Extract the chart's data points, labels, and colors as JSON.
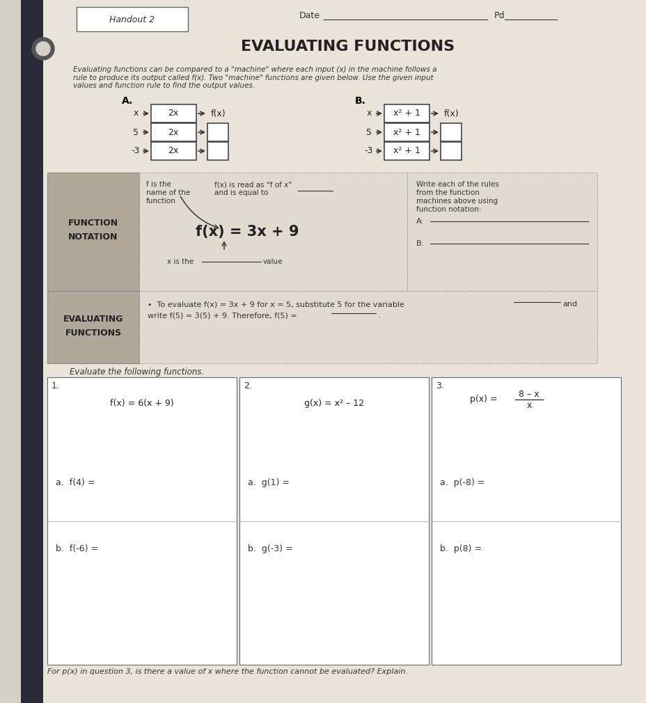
{
  "bg_color": "#d4d0c8",
  "paper_color": "#e8e4dc",
  "title": "EVALUATING FUNCTIONS",
  "header_text": "Handout 2",
  "date_label": "Date",
  "pd_label": "Pd",
  "intro_text": "Evaluating functions can be compared to a \"machine\" where each input (x) in the machine follows a\nrule to produce its output called f(x). Two \"machine\" functions are given below. Use the given input\nvalues and function rule to find the output values.",
  "machine_A_label": "A.",
  "machine_B_label": "B.",
  "machine_A_rule": "2x",
  "machine_B_rule": "x² + 1",
  "machine_inputs": [
    "x",
    "5",
    "-3"
  ],
  "machine_output_label": "f(x)",
  "fn_notation_title": "FUNCTION\nNOTATION",
  "fn_notation_text1": "f is the\nname of the\nfunction",
  "fn_notation_text2": "f(x) is read as “f of x”\nand is equal to ___",
  "fn_notation_formula": "f(x) = 3x + 9",
  "fn_notation_arrow_label": "x is the ___________ value",
  "fn_notation_right": "Write each of the rules\nfrom the function\nmachines above using\nfunction notation:\n\nA: _______________\n\nB: _______________",
  "eval_title": "EVALUATING\nFUNCTIONS",
  "eval_text": "To evaluate f(x) = 3x + 9 for x = 5, substitute 5 for the variable _______ and\nwrite f(5) = 3(5) + 9. Therefore, f(5) = _______.",
  "eval_bottom": "Evaluate the following functions.",
  "prob1_func": "f(x) = 6(x + 9)",
  "prob1_a": "a.  f(4) =",
  "prob1_b": "b.  f(-6) =",
  "prob2_func": "g(x) = x² – 12",
  "prob2_a": "a.  g(1) =",
  "prob2_b": "b.  g(-3) =",
  "prob3_a": "a.  p(-8) =",
  "prob3_b": "b.  p(8) =",
  "bottom_note": "For p(x) in question 3, is there a value of x where the function cannot be evaluated? Explain.",
  "gray_sidebar_color": "#b0a898",
  "box_color": "#ffffff",
  "grid_line_color": "#888888"
}
